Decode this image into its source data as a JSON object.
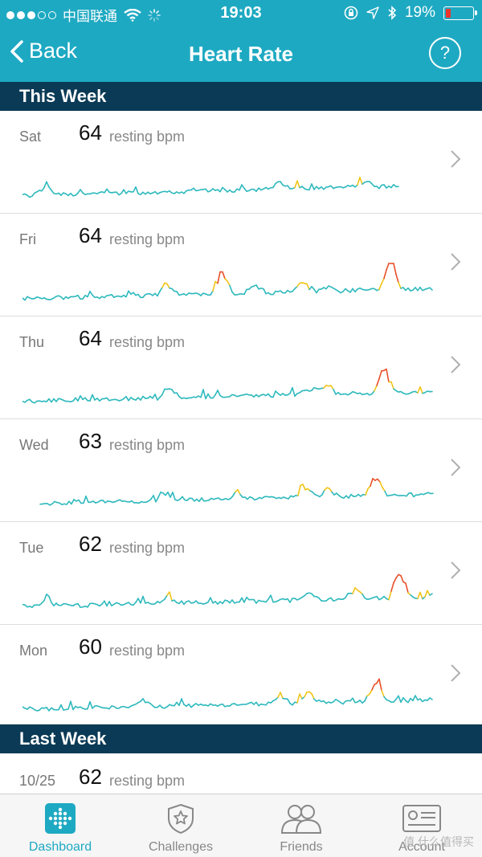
{
  "status": {
    "carrier": "中国联通",
    "time": "19:03",
    "battery_pct": "19%",
    "battery_level": 0.19
  },
  "nav": {
    "back_label": "Back",
    "title": "Heart Rate",
    "help_label": "?"
  },
  "sections": [
    {
      "title": "This Week",
      "rows": [
        {
          "day": "Sat",
          "bpm": "64",
          "unit": "resting bpm"
        },
        {
          "day": "Fri",
          "bpm": "64",
          "unit": "resting bpm"
        },
        {
          "day": "Thu",
          "bpm": "64",
          "unit": "resting bpm"
        },
        {
          "day": "Wed",
          "bpm": "63",
          "unit": "resting bpm"
        },
        {
          "day": "Tue",
          "bpm": "62",
          "unit": "resting bpm"
        },
        {
          "day": "Mon",
          "bpm": "60",
          "unit": "resting bpm"
        }
      ]
    },
    {
      "title": "Last Week",
      "rows": [
        {
          "day": "10/25",
          "bpm": "62",
          "unit": "resting bpm"
        }
      ]
    }
  ],
  "tabs": [
    {
      "label": "Dashboard",
      "active": true
    },
    {
      "label": "Challenges",
      "active": false
    },
    {
      "label": "Friends",
      "active": false
    },
    {
      "label": "Account",
      "active": false
    }
  ],
  "watermark": "值 什么值得买",
  "colors": {
    "header": "#1ea9c2",
    "section": "#0a3a55",
    "line_low": "#2fb9bd",
    "line_mid": "#f0c419",
    "line_high": "#e8502a",
    "tab_active": "#1ea9c2"
  }
}
